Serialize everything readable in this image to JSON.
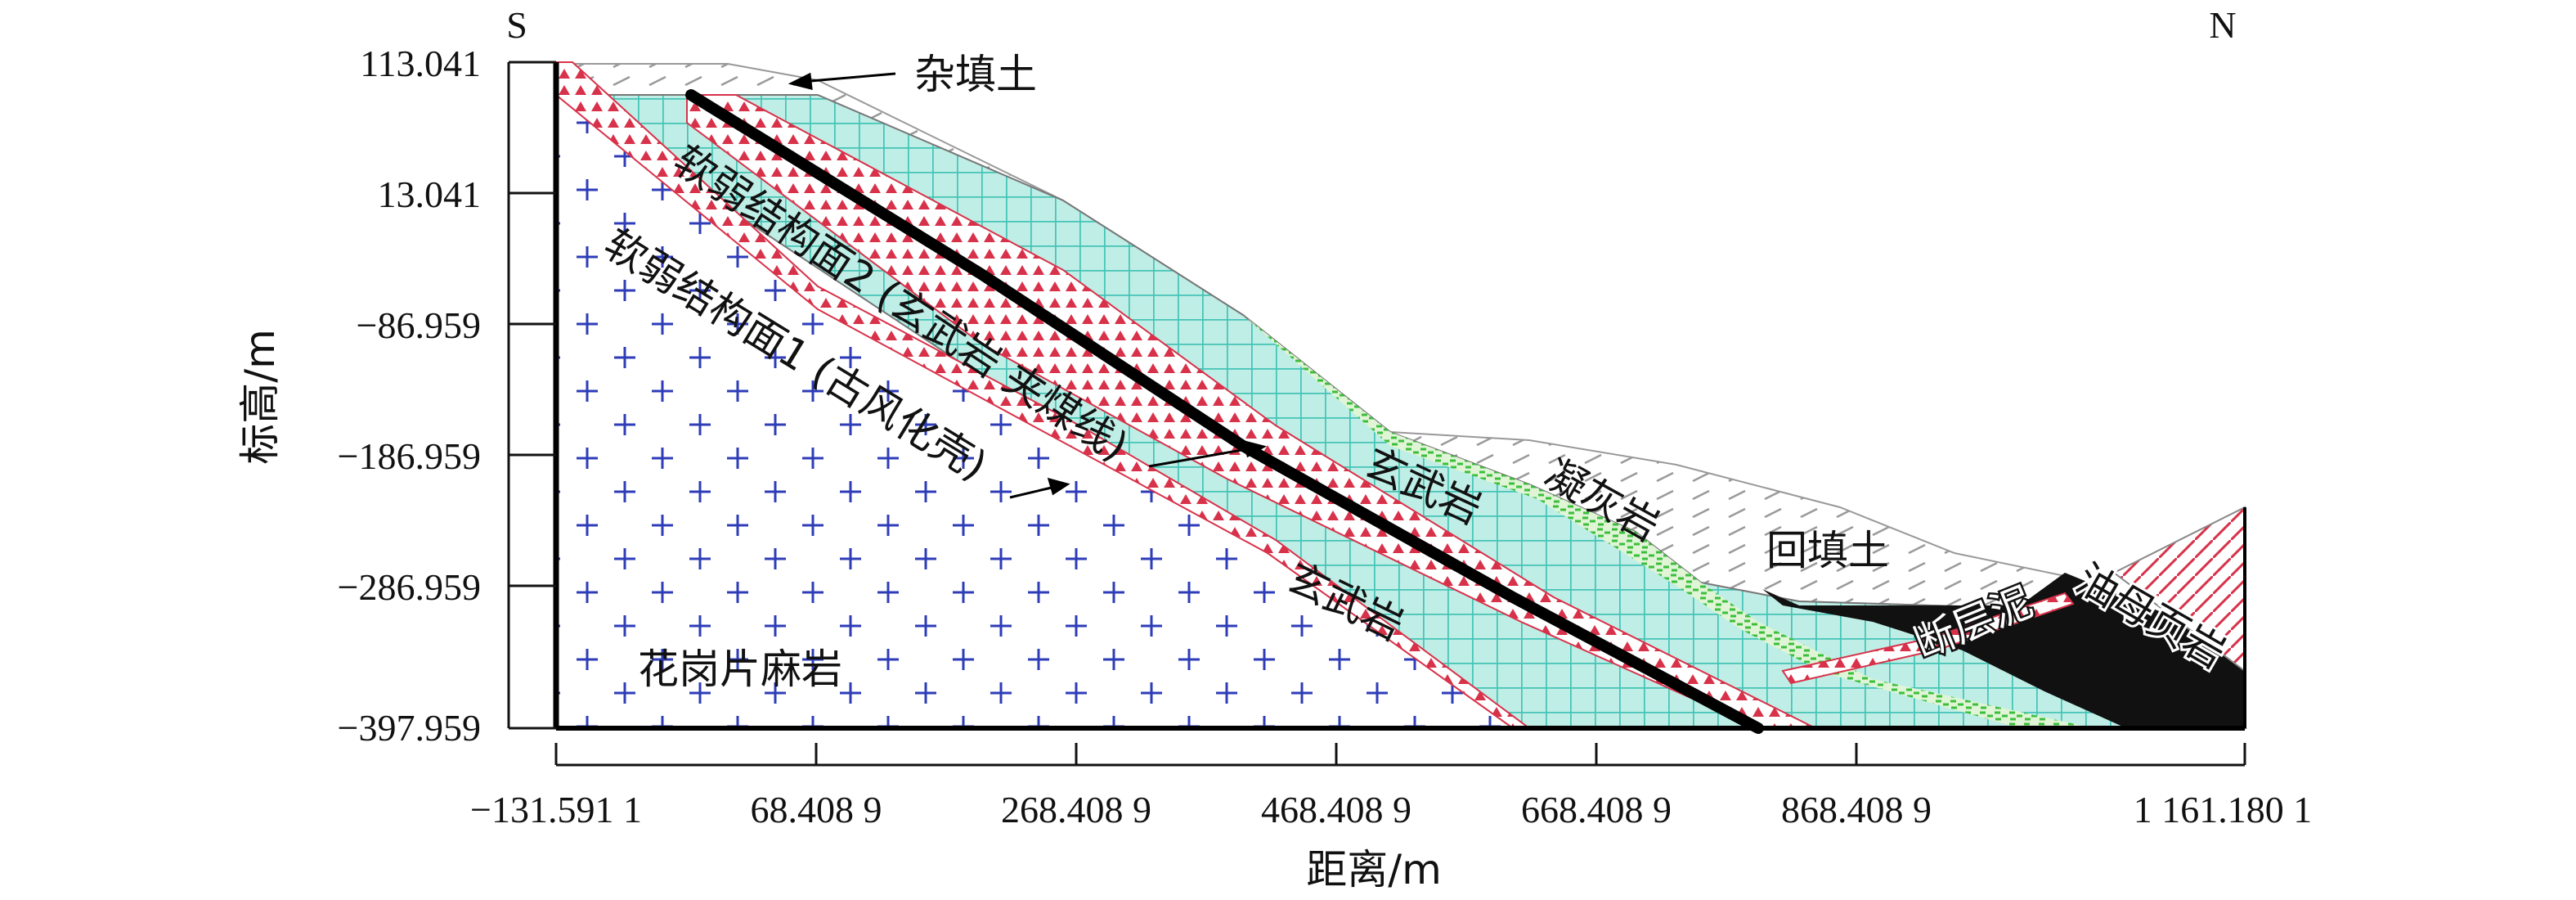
{
  "compass": {
    "south": "S",
    "north": "N"
  },
  "axes": {
    "y_title": "标高/m",
    "x_title": "距离/m",
    "y_ticks": [
      "113.041",
      "13.041",
      "−86.959",
      "−186.959",
      "−286.959",
      "−397.959"
    ],
    "x_ticks": [
      "−131.591 1",
      "68.408 9",
      "268.408 9",
      "468.408 9",
      "668.408 9",
      "868.408 9",
      "1 161.180 1"
    ]
  },
  "labels": {
    "fill_top": "杂填土",
    "weak_plane_2": "软弱结构面2 (玄武岩 夹煤线)",
    "weak_plane_1": "软弱结构面1 (古风化壳)",
    "basalt_upper": "玄武岩",
    "basalt_lower": "玄武岩",
    "tuff": "凝灰岩",
    "backfill": "回填土",
    "fault_mud": "断层泥",
    "oil_shale": "油母页岩",
    "granite": "花岗片麻岩"
  },
  "colors": {
    "basalt": "#bfeee6",
    "basalt_grid": "#45c4b6",
    "granite_cross": "#2e3cb8",
    "weak_zone": "#d8324a",
    "tuff": "#3bbf3b",
    "fill_hatch": "#9a9a9a",
    "fault": "#111111"
  }
}
